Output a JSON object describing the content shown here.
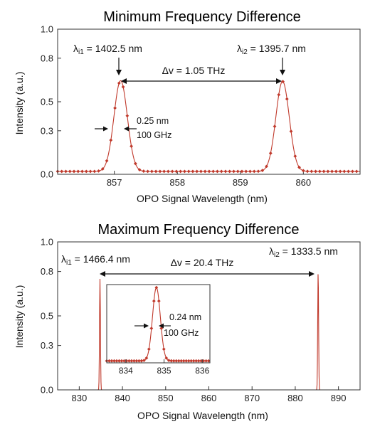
{
  "colors": {
    "series": "#c0392b",
    "axis": "#333333"
  },
  "chart_data": [
    {
      "type": "line",
      "title": "Minimum Frequency Difference",
      "xlabel": "OPO Signal Wavelength (nm)",
      "ylabel": "Intensity (a.u.)",
      "xlim": [
        856.1,
        860.9
      ],
      "ylim": [
        0.0,
        1.0
      ],
      "xticks": [
        857,
        858,
        859,
        860
      ],
      "xtick_labels": [
        "857",
        "858",
        "859",
        "860"
      ],
      "yticks": [
        0.0,
        0.3,
        0.5,
        0.8,
        1.0
      ],
      "ytick_labels": [
        "0.0",
        "0.3",
        "0.5",
        "0.8",
        "1.0"
      ],
      "peaks": [
        {
          "center": 857.1,
          "amplitude": 0.625,
          "fwhm": 0.25
        },
        {
          "center": 859.67,
          "amplitude": 0.62,
          "fwhm": 0.25
        }
      ],
      "baseline": 0.02,
      "series": [
        {
          "marker": "diamond",
          "x_start": 856.1,
          "x_end": 860.9,
          "step": 0.065
        }
      ],
      "annotations": {
        "lambda_i1": {
          "prefix": "λ",
          "sub": "i1",
          "text": " = 1402.5 nm"
        },
        "lambda_i2": {
          "prefix": "λ",
          "sub": "i2",
          "text": " = 1395.7 nm"
        },
        "delta_v": "Δv = 1.05 THz",
        "width_nm": "0.25 nm",
        "width_ghz": "100 GHz"
      }
    },
    {
      "type": "line",
      "title": "Maximum Frequency Difference",
      "xlabel": "OPO Signal Wavelength (nm)",
      "ylabel": "Intensity (a.u.)",
      "xlim": [
        825,
        895
      ],
      "ylim": [
        0.0,
        1.0
      ],
      "xticks": [
        830,
        840,
        850,
        860,
        870,
        880,
        890
      ],
      "xtick_labels": [
        "830",
        "840",
        "850",
        "860",
        "870",
        "880",
        "890"
      ],
      "yticks": [
        0.0,
        0.3,
        0.5,
        0.8,
        1.0
      ],
      "ytick_labels": [
        "0.0",
        "0.3",
        "0.5",
        "0.8",
        "1.0"
      ],
      "peaks": [
        {
          "center": 834.8,
          "amplitude": 0.75,
          "fwhm": 0.24
        },
        {
          "center": 885.3,
          "amplitude": 0.8,
          "fwhm": 0.24
        }
      ],
      "baseline": 0.0,
      "annotations": {
        "lambda_i1": {
          "prefix": "λ",
          "sub": "i1",
          "text": " = 1466.4 nm"
        },
        "lambda_i2": {
          "prefix": "λ",
          "sub": "i2",
          "text": " = 1333.5 nm"
        },
        "delta_v": "Δv = 20.4 THz"
      },
      "inset": {
        "xlim": [
          833.5,
          836.2
        ],
        "ylim": [
          0.0,
          0.8
        ],
        "xticks": [
          834,
          835,
          836
        ],
        "xtick_labels": [
          "834",
          "835",
          "836"
        ],
        "peak": {
          "center": 834.8,
          "amplitude": 0.75,
          "fwhm": 0.24
        },
        "baseline": 0.02,
        "series": [
          {
            "marker": "diamond",
            "x_start": 833.5,
            "x_end": 836.2,
            "step": 0.065
          }
        ],
        "annotations": {
          "width_nm": "0.24 nm",
          "width_ghz": "100 GHz"
        }
      }
    }
  ]
}
